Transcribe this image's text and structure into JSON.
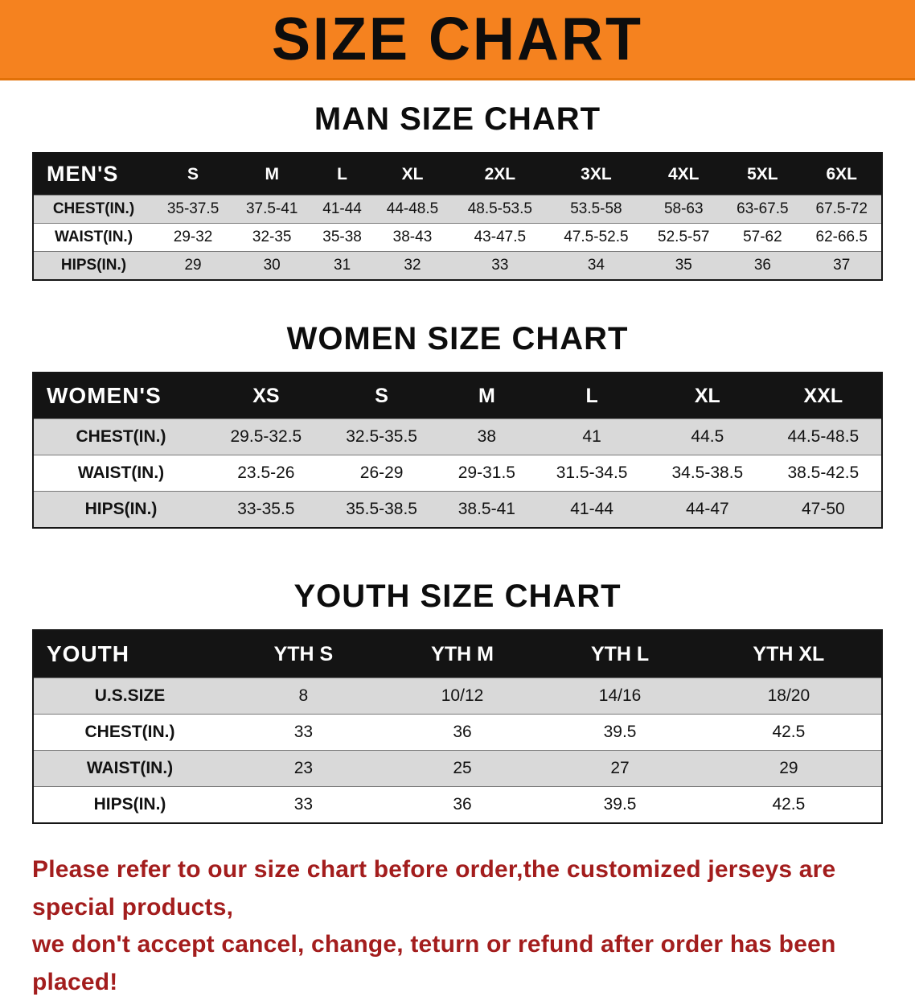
{
  "banner": {
    "title": "SIZE CHART"
  },
  "colors": {
    "banner_bg": "#f5821f",
    "header_bg": "#141414",
    "stripe": "#d9d9d9",
    "note": "#a31d1d"
  },
  "sections": [
    {
      "heading": "MAN SIZE CHART",
      "table": {
        "header": [
          "MEN'S",
          "S",
          "M",
          "L",
          "XL",
          "2XL",
          "3XL",
          "4XL",
          "5XL",
          "6XL"
        ],
        "rows": [
          [
            "CHEST(IN.)",
            "35-37.5",
            "37.5-41",
            "41-44",
            "44-48.5",
            "48.5-53.5",
            "53.5-58",
            "58-63",
            "63-67.5",
            "67.5-72"
          ],
          [
            "WAIST(IN.)",
            "29-32",
            "32-35",
            "35-38",
            "38-43",
            "43-47.5",
            "47.5-52.5",
            "52.5-57",
            "57-62",
            "62-66.5"
          ],
          [
            "HIPS(IN.)",
            "29",
            "30",
            "31",
            "32",
            "33",
            "34",
            "35",
            "36",
            "37"
          ]
        ]
      }
    },
    {
      "heading": "WOMEN SIZE CHART",
      "table": {
        "header": [
          "WOMEN'S",
          "XS",
          "S",
          "M",
          "L",
          "XL",
          "XXL"
        ],
        "rows": [
          [
            "CHEST(IN.)",
            "29.5-32.5",
            "32.5-35.5",
            "38",
            "41",
            "44.5",
            "44.5-48.5"
          ],
          [
            "WAIST(IN.)",
            "23.5-26",
            "26-29",
            "29-31.5",
            "31.5-34.5",
            "34.5-38.5",
            "38.5-42.5"
          ],
          [
            "HIPS(IN.)",
            "33-35.5",
            "35.5-38.5",
            "38.5-41",
            "41-44",
            "44-47",
            "47-50"
          ]
        ]
      }
    },
    {
      "heading": "YOUTH SIZE CHART",
      "table": {
        "header": [
          "YOUTH",
          "YTH S",
          "YTH M",
          "YTH L",
          "YTH XL"
        ],
        "rows": [
          [
            "U.S.SIZE",
            "8",
            "10/12",
            "14/16",
            "18/20"
          ],
          [
            "CHEST(IN.)",
            "33",
            "36",
            "39.5",
            "42.5"
          ],
          [
            "WAIST(IN.)",
            "23",
            "25",
            "27",
            "29"
          ],
          [
            "HIPS(IN.)",
            "33",
            "36",
            "39.5",
            "42.5"
          ]
        ]
      }
    }
  ],
  "note": {
    "line1": "Please refer to our size chart before order,the customized jerseys are special products,",
    "line2": "we don't accept cancel, change, teturn or refund after order has been placed!"
  }
}
